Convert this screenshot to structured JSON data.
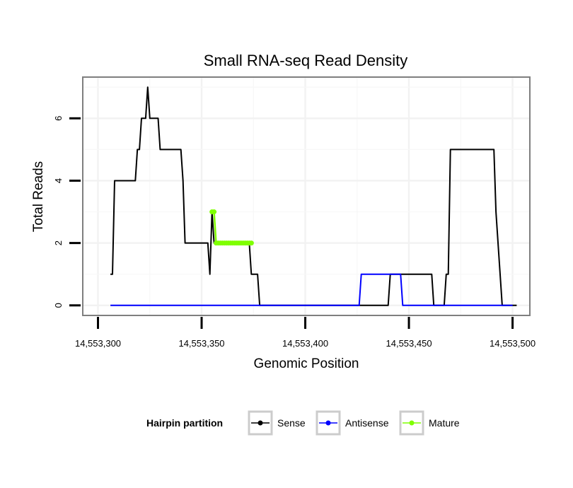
{
  "chart_data": {
    "type": "line",
    "title": "Small RNA-seq Read Density",
    "xlabel": "Genomic Position",
    "ylabel": "Total Reads",
    "xlim": [
      14553293,
      14553508
    ],
    "ylim": [
      -0.3,
      7.3
    ],
    "x_ticks": [
      14553300,
      14553350,
      14553400,
      14553450,
      14553500
    ],
    "x_tick_labels": [
      "14,553,300",
      "14,553,350",
      "14,553,400",
      "14,553,450",
      "14,553,500"
    ],
    "y_ticks": [
      0,
      2,
      4,
      6
    ],
    "y_tick_labels": [
      "0",
      "2",
      "4",
      "6"
    ],
    "grid": true,
    "legend": {
      "title": "Hairpin partition",
      "position": "bottom",
      "entries": [
        "Sense",
        "Antisense",
        "Mature"
      ]
    },
    "series": [
      {
        "name": "Sense",
        "color": "#000000",
        "x": [
          14553306,
          14553307,
          14553308,
          14553318,
          14553319,
          14553320,
          14553321,
          14553322,
          14553323,
          14553324,
          14553325,
          14553329,
          14553330,
          14553340,
          14553341,
          14553342,
          14553353,
          14553354,
          14553355,
          14553356,
          14553357,
          14553373,
          14553374,
          14553377,
          14553378,
          14553427,
          14553440,
          14553441,
          14553461,
          14553462,
          14553467,
          14553468,
          14553469,
          14553470,
          14553491,
          14553492,
          14553495,
          14553502
        ],
        "values": [
          1,
          1,
          4,
          4,
          5,
          5,
          6,
          6,
          6,
          7,
          6,
          6,
          5,
          5,
          4,
          2,
          2,
          1,
          3,
          2,
          2,
          2,
          1,
          1,
          0,
          0,
          0,
          1,
          1,
          0,
          0,
          1,
          1,
          5,
          5,
          3,
          0,
          0
        ]
      },
      {
        "name": "Antisense",
        "color": "#0000ff",
        "x": [
          14553306,
          14553426,
          14553427,
          14553446,
          14553447,
          14553500
        ],
        "values": [
          0,
          0,
          1,
          1,
          0,
          0
        ]
      },
      {
        "name": "Mature",
        "color": "#7fff00",
        "x": [
          14553355,
          14553356,
          14553357,
          14553358,
          14553359,
          14553360,
          14553361,
          14553362,
          14553363,
          14553364,
          14553365,
          14553366,
          14553367,
          14553368,
          14553369,
          14553370,
          14553371,
          14553372,
          14553373,
          14553374
        ],
        "values": [
          3,
          3,
          2,
          2,
          2,
          2,
          2,
          2,
          2,
          2,
          2,
          2,
          2,
          2,
          2,
          2,
          2,
          2,
          2,
          2
        ]
      }
    ]
  }
}
